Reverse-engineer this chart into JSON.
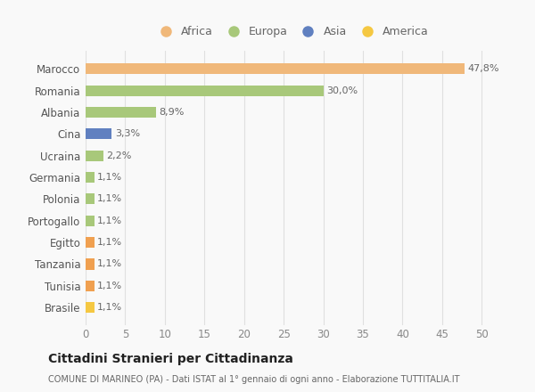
{
  "categories": [
    "Brasile",
    "Tunisia",
    "Tanzania",
    "Egitto",
    "Portogallo",
    "Polonia",
    "Germania",
    "Ucraina",
    "Cina",
    "Albania",
    "Romania",
    "Marocco"
  ],
  "values": [
    1.1,
    1.1,
    1.1,
    1.1,
    1.1,
    1.1,
    1.1,
    2.2,
    3.3,
    8.9,
    30.0,
    47.8
  ],
  "colors": [
    "#f5c842",
    "#f0a050",
    "#f0a050",
    "#f0a050",
    "#a8c87a",
    "#a8c87a",
    "#a8c87a",
    "#a8c87a",
    "#6080c0",
    "#a8c87a",
    "#a8c87a",
    "#f0b87a"
  ],
  "labels": [
    "1,1%",
    "1,1%",
    "1,1%",
    "1,1%",
    "1,1%",
    "1,1%",
    "1,1%",
    "2,2%",
    "3,3%",
    "8,9%",
    "30,0%",
    "47,8%"
  ],
  "legend": [
    {
      "label": "Africa",
      "color": "#f0b87a"
    },
    {
      "label": "Europa",
      "color": "#a8c87a"
    },
    {
      "label": "Asia",
      "color": "#6080c0"
    },
    {
      "label": "America",
      "color": "#f5c842"
    }
  ],
  "xlim": [
    0,
    52
  ],
  "xticks": [
    0,
    5,
    10,
    15,
    20,
    25,
    30,
    35,
    40,
    45,
    50
  ],
  "title": "Cittadini Stranieri per Cittadinanza",
  "subtitle": "COMUNE DI MARINEO (PA) - Dati ISTAT al 1° gennaio di ogni anno - Elaborazione TUTTITALIA.IT",
  "background_color": "#f9f9f9",
  "grid_color": "#e0e0e0"
}
